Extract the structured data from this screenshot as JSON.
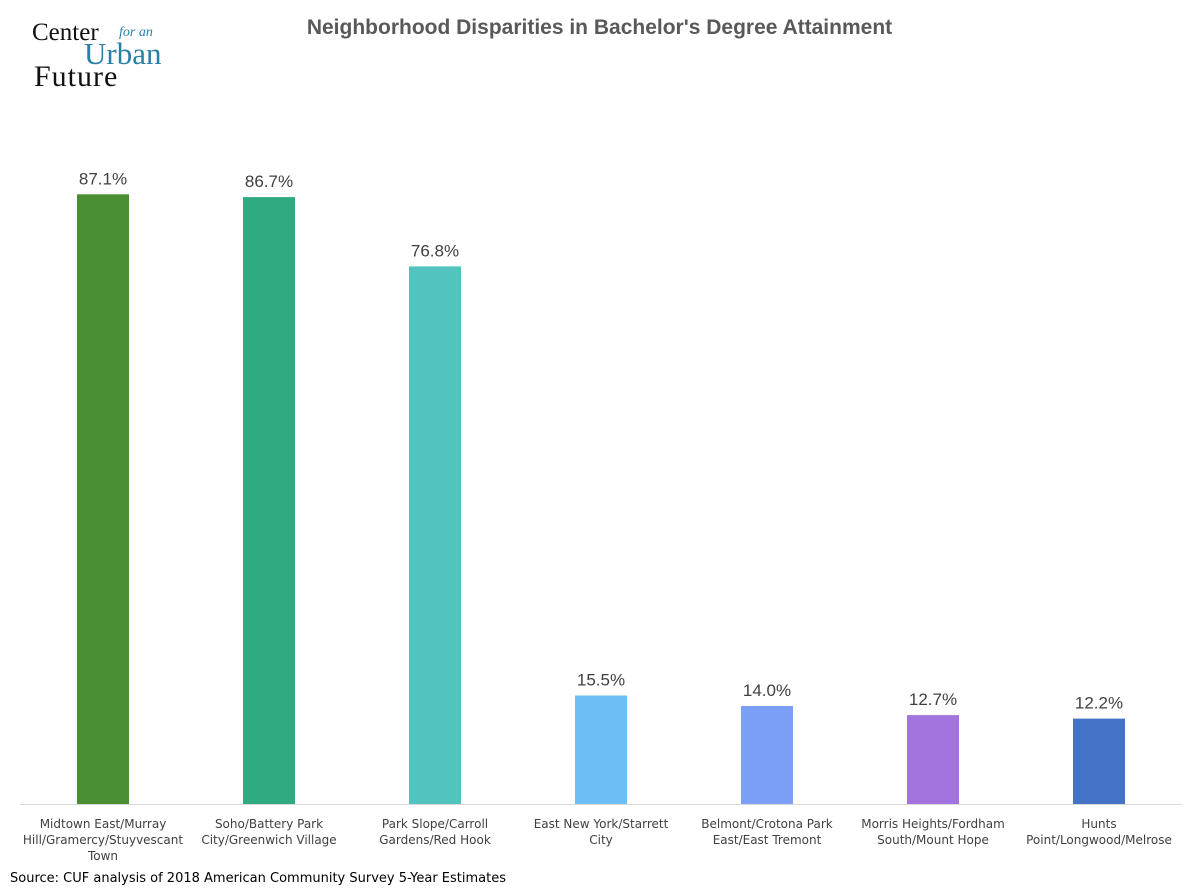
{
  "logo": {
    "line1": "Center",
    "line2": "for an",
    "line3": "Urban",
    "line4": "Future"
  },
  "source": "Source: CUF analysis of 2018 American Community Survey 5-Year Estimates",
  "chart_data": {
    "type": "bar",
    "title": "Neighborhood Disparities in Bachelor's Degree Attainment",
    "xlabel": "",
    "ylabel": "",
    "ylim": [
      0,
      100
    ],
    "grid": false,
    "categories": [
      [
        "Midtown East/Murray",
        "Hill/Gramercy/Stuyvescant",
        "Town"
      ],
      [
        "Soho/Battery Park",
        "City/Greenwich Village"
      ],
      [
        "Park Slope/Carroll",
        "Gardens/Red Hook"
      ],
      [
        "East New York/Starrett",
        "City"
      ],
      [
        "Belmont/Crotona Park",
        "East/East Tremont"
      ],
      [
        "Morris Heights/Fordham",
        "South/Mount Hope"
      ],
      [
        "Hunts",
        "Point/Longwood/Melrose"
      ]
    ],
    "values": [
      87.1,
      86.7,
      76.8,
      15.5,
      14.0,
      12.7,
      12.2
    ],
    "data_labels": [
      "87.1%",
      "86.7%",
      "76.8%",
      "15.5%",
      "14.0%",
      "12.7%",
      "12.2%"
    ],
    "colors": [
      "#4a8f32",
      "#2eab80",
      "#52c4c0",
      "#6bbff5",
      "#7b9ff7",
      "#a374e0",
      "#4472c4"
    ]
  }
}
